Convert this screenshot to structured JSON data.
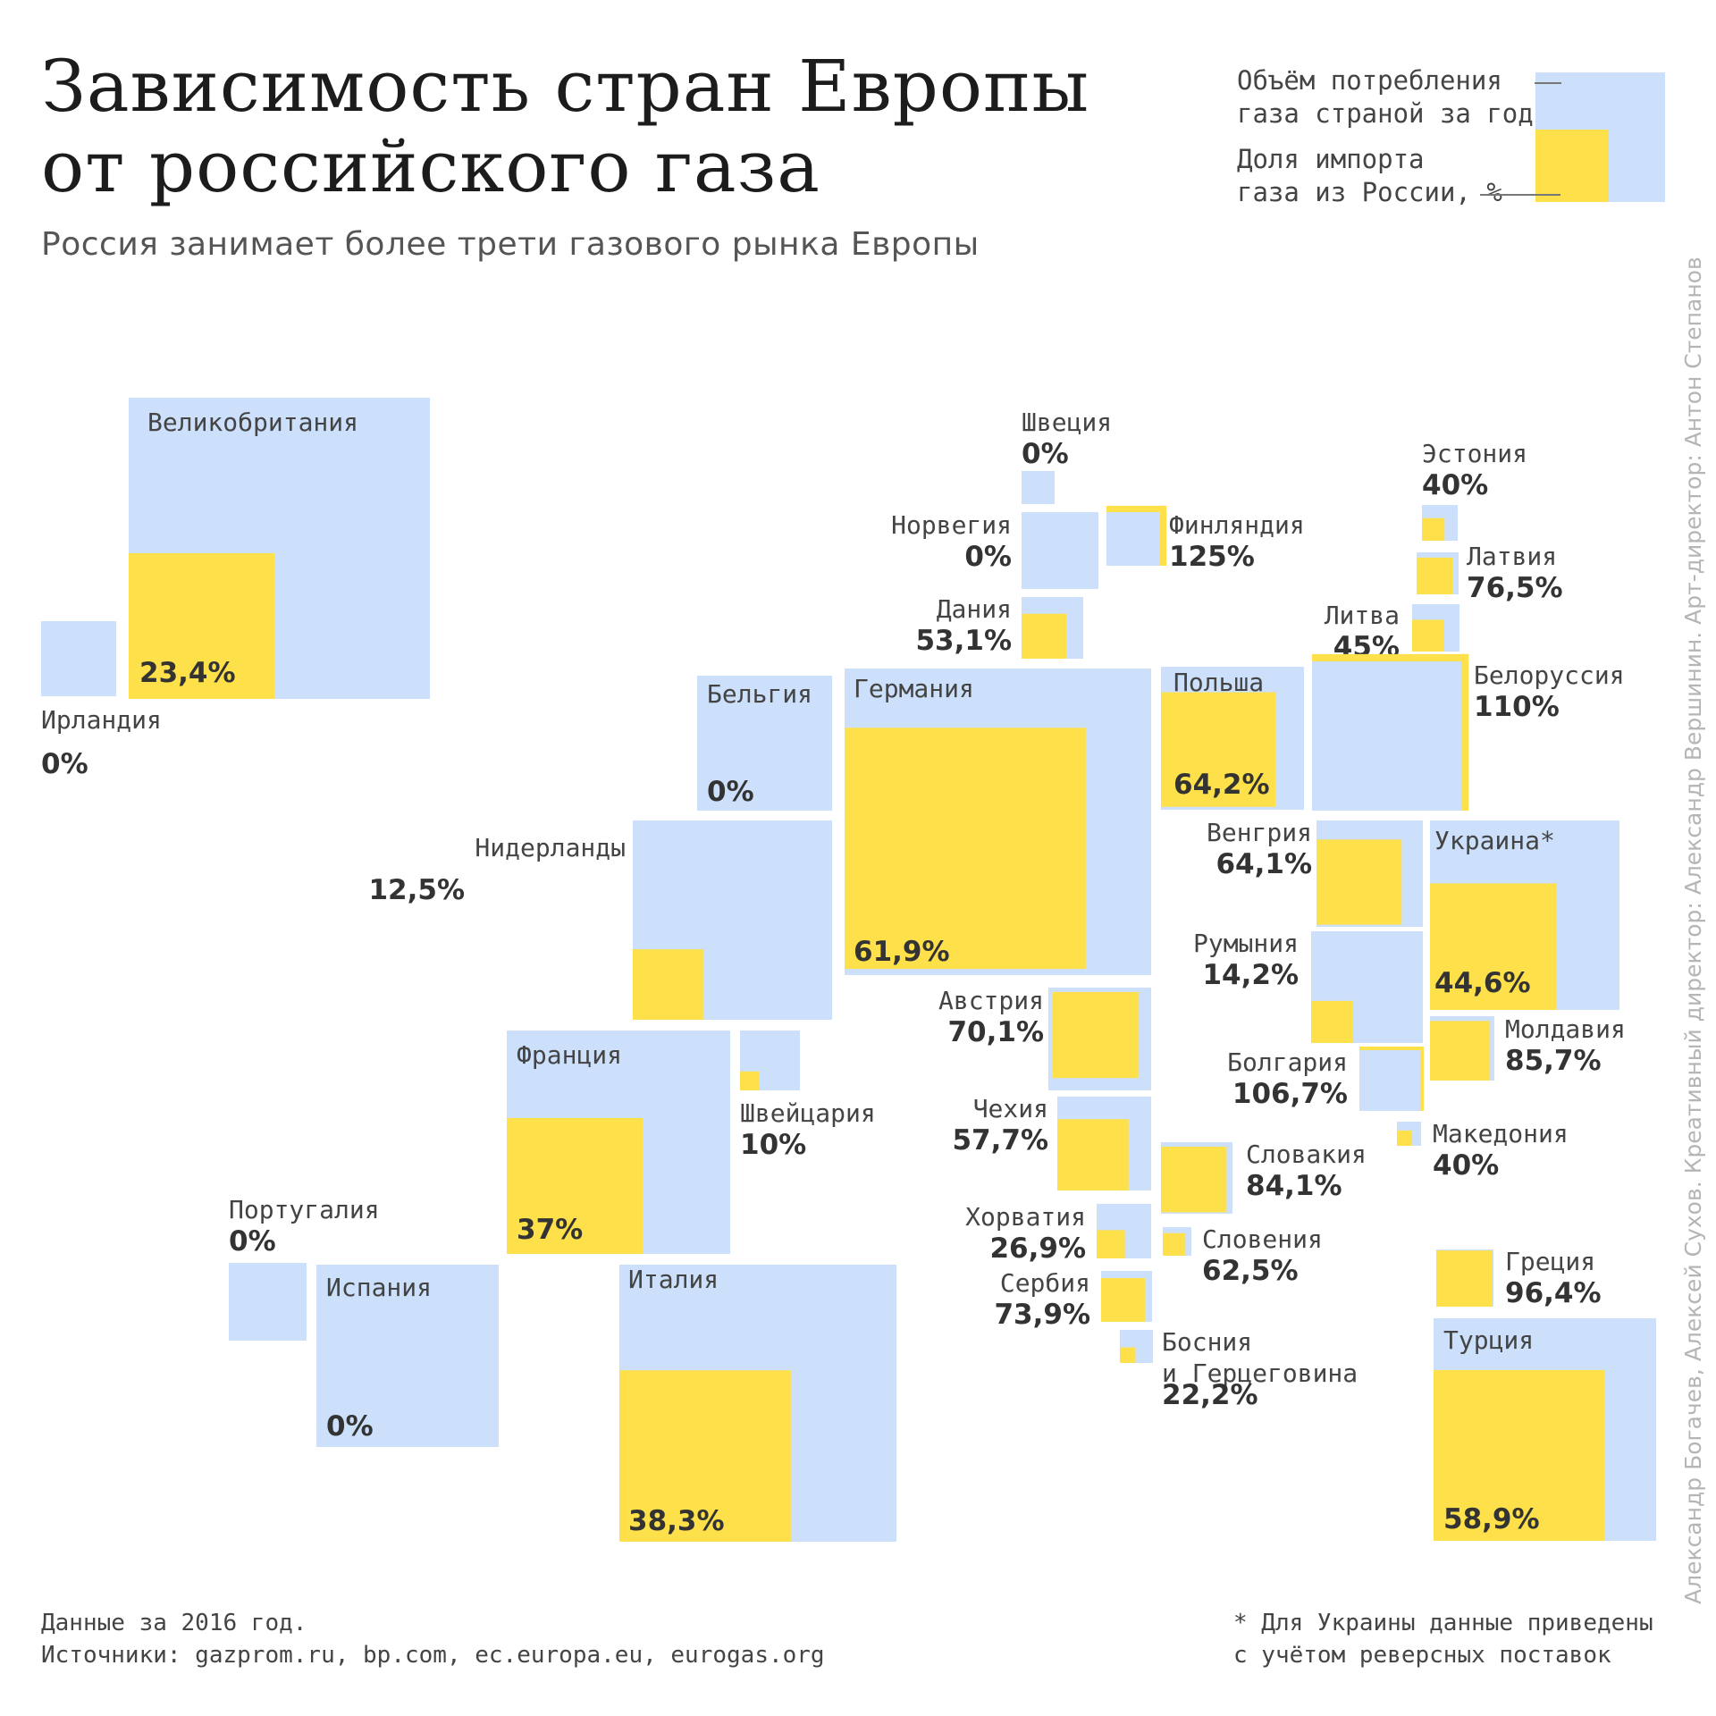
{
  "title_lines": [
    "Зависимость стран Европы",
    "от российского газа"
  ],
  "subtitle": "Россия занимает более трети газового рынка Европы",
  "legend": {
    "consumption_lines": [
      "Объём потребления",
      "газа страной за год"
    ],
    "import_lines": [
      "Доля импорта",
      "газа из России, %"
    ]
  },
  "colors": {
    "consumption": "#cce0fb",
    "russian_import": "#fde04a"
  },
  "footnote_left": [
    "Данные за 2016 год.",
    "Источники: gazprom.ru, bp.com, ec.europa.eu, eurogas.org"
  ],
  "footnote_right": [
    "* Для Украины данные приведены",
    "с учётом реверсных поставок"
  ],
  "credits": "Александр Богачев, Алексей Сухов. Креативный директор: Александр Вершинин. Арт-директор: Антон Степанов",
  "chart_data": {
    "type": "treemap-map",
    "series": [
      {
        "name": "Объём потребления газа страной за год"
      },
      {
        "name": "Доля импорта газа из России, %"
      }
    ],
    "countries": [
      {
        "name": "Великобритания",
        "label": "23,4%",
        "share": 23.4
      },
      {
        "name": "Ирландия",
        "label": "0%",
        "share": 0
      },
      {
        "name": "Швеция",
        "label": "0%",
        "share": 0
      },
      {
        "name": "Норвегия",
        "label": "0%",
        "share": 0
      },
      {
        "name": "Финляндия",
        "label": "125%",
        "share": 125
      },
      {
        "name": "Дания",
        "label": "53,1%",
        "share": 53.1
      },
      {
        "name": "Эстония",
        "label": "40%",
        "share": 40
      },
      {
        "name": "Латвия",
        "label": "76,5%",
        "share": 76.5
      },
      {
        "name": "Литва",
        "label": "45%",
        "share": 45
      },
      {
        "name": "Белоруссия",
        "label": "110%",
        "share": 110
      },
      {
        "name": "Бельгия",
        "label": "0%",
        "share": 0
      },
      {
        "name": "Германия",
        "label": "61,9%",
        "share": 61.9
      },
      {
        "name": "Польша",
        "label": "64,2%",
        "share": 64.2
      },
      {
        "name": "Нидерланды",
        "label": "12,5%",
        "share": 12.5
      },
      {
        "name": "Венгрия",
        "label": "64,1%",
        "share": 64.1
      },
      {
        "name": "Украина*",
        "label": "44,6%",
        "share": 44.6
      },
      {
        "name": "Румыния",
        "label": "14,2%",
        "share": 14.2
      },
      {
        "name": "Австрия",
        "label": "70,1%",
        "share": 70.1
      },
      {
        "name": "Франция",
        "label": "37%",
        "share": 37
      },
      {
        "name": "Швейцария",
        "label": "10%",
        "share": 10
      },
      {
        "name": "Молдавия",
        "label": "85,7%",
        "share": 85.7
      },
      {
        "name": "Болгария",
        "label": "106,7%",
        "share": 106.7
      },
      {
        "name": "Чехия",
        "label": "57,7%",
        "share": 57.7
      },
      {
        "name": "Македония",
        "label": "40%",
        "share": 40
      },
      {
        "name": "Словакия",
        "label": "84,1%",
        "share": 84.1
      },
      {
        "name": "Португалия",
        "label": "0%",
        "share": 0
      },
      {
        "name": "Хорватия",
        "label": "26,9%",
        "share": 26.9
      },
      {
        "name": "Словения",
        "label": "62,5%",
        "share": 62.5
      },
      {
        "name": "Испания",
        "label": "0%",
        "share": 0
      },
      {
        "name": "Италия",
        "label": "38,3%",
        "share": 38.3
      },
      {
        "name": "Сербия",
        "label": "73,9%",
        "share": 73.9
      },
      {
        "name": "Греция",
        "label": "96,4%",
        "share": 96.4
      },
      {
        "name": "Босния и Герцеговина",
        "name_lines": [
          "Босния",
          "и Герцеговина"
        ],
        "label": "22,2%",
        "share": 22.2
      },
      {
        "name": "Турция",
        "label": "58,9%",
        "share": 58.9
      }
    ]
  }
}
